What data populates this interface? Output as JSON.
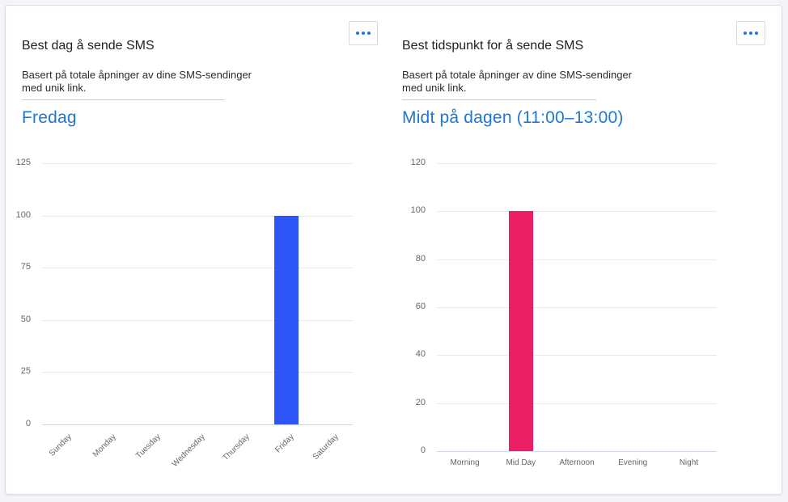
{
  "panels": [
    {
      "title": "Best dag å sende SMS",
      "description_line1": "Basert på totale åpninger av dine SMS-sendinger",
      "description_line2": "med unik link.",
      "highlight": "Fredag",
      "menu_icon": "more-horizontal-icon"
    },
    {
      "title": "Best tidspunkt for å sende SMS",
      "description_line1": "Basert på totale åpninger av dine SMS-sendinger",
      "description_line2": "med unik link.",
      "highlight": "Midt på dagen (11:00–13:00)",
      "menu_icon": "more-horizontal-icon"
    }
  ],
  "colors": {
    "accent_text": "#1f77d4",
    "bar_day": "#2d55f7",
    "bar_time": "#e91e63"
  },
  "chart_data": [
    {
      "type": "bar",
      "title": "Best dag å sende SMS",
      "categories": [
        "Sunday",
        "Monday",
        "Tuesday",
        "Wednesday",
        "Thursday",
        "Friday",
        "Saturday"
      ],
      "values": [
        0,
        0,
        0,
        0,
        0,
        100,
        0
      ],
      "yticks": [
        "0",
        "25",
        "50",
        "75",
        "100",
        "125"
      ],
      "ylim": [
        0,
        125
      ],
      "xlabel": "",
      "ylabel": "",
      "grid": true,
      "legend": "none",
      "color": "#2d55f7",
      "xlabel_rotation": -45
    },
    {
      "type": "bar",
      "title": "Best tidspunkt for å sende SMS",
      "categories": [
        "Morning",
        "Mid Day",
        "Afternoon",
        "Evening",
        "Night"
      ],
      "values": [
        0,
        100,
        0,
        0,
        0
      ],
      "yticks": [
        "0",
        "20",
        "40",
        "60",
        "80",
        "100",
        "120"
      ],
      "ylim": [
        0,
        120
      ],
      "xlabel": "",
      "ylabel": "",
      "grid": true,
      "legend": "none",
      "color": "#e91e63",
      "xlabel_rotation": 0
    }
  ]
}
